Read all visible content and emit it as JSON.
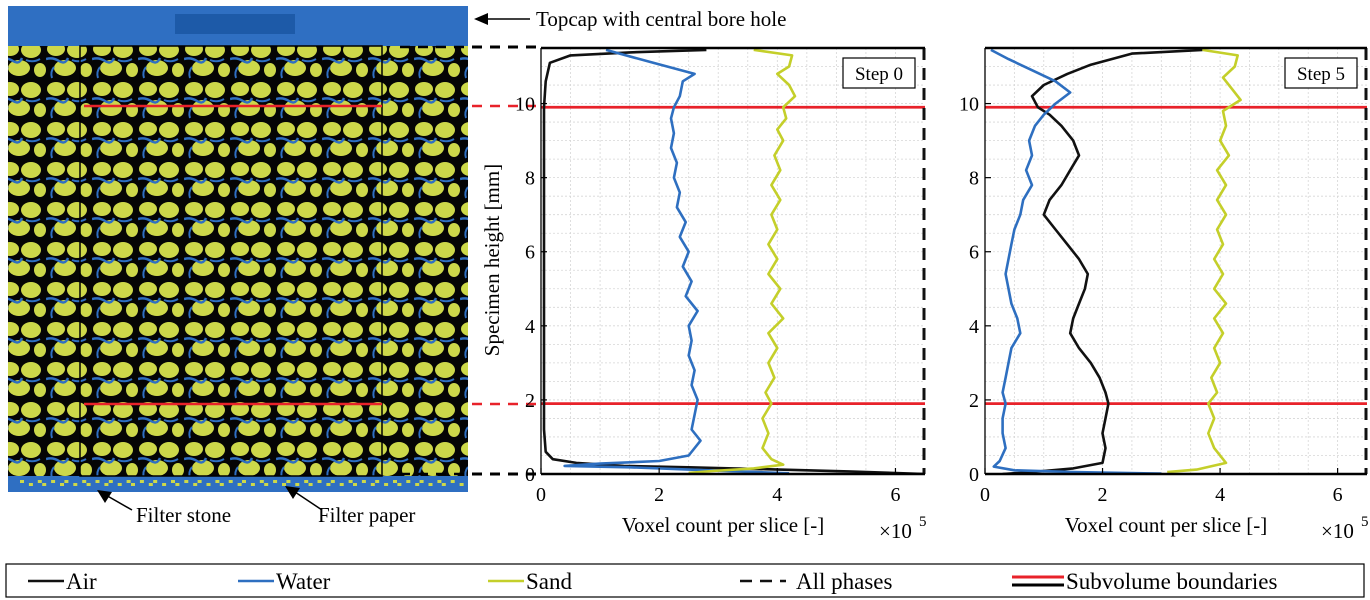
{
  "annotations": {
    "topcap": "Topcap with central bore hole",
    "filter_stone": "Filter stone",
    "filter_paper": "Filter paper"
  },
  "colors": {
    "air": "#111111",
    "water": "#2e6fc0",
    "sand": "#c4cf2a",
    "all_phases": "#111111",
    "subvolume": "#e8222a",
    "pore_black": "#050505",
    "scan_water": "#2f6fc2",
    "scan_sand": "#cdd84a"
  },
  "legend": [
    {
      "label": "Air",
      "style": "air"
    },
    {
      "label": "Water",
      "style": "water"
    },
    {
      "label": "Sand",
      "style": "sand"
    },
    {
      "label": "All phases",
      "style": "dashed"
    },
    {
      "label": "Subvolume boundaries",
      "style": "subvolume"
    }
  ],
  "chart_data": [
    {
      "type": "line",
      "panel": "Step 0",
      "xlabel": "Voxel count per slice [-]",
      "x_multiplier": "×10",
      "x_multiplier_exp": "5",
      "ylabel": "Specimen height [mm]",
      "xlim": [
        0,
        6.5
      ],
      "ylim": [
        0,
        11.5
      ],
      "xticks": [
        "0",
        "2",
        "4",
        "6"
      ],
      "yticks": [
        "0",
        "2",
        "4",
        "6",
        "8",
        "10"
      ],
      "grid": true,
      "subvolume_boundaries": [
        1.9,
        9.9
      ],
      "all_phases_x": 6.5,
      "series": [
        {
          "name": "Air",
          "style": "air",
          "points": [
            [
              2.8,
              11.45
            ],
            [
              1.5,
              11.38
            ],
            [
              0.5,
              11.3
            ],
            [
              0.15,
              11.1
            ],
            [
              0.08,
              10.6
            ],
            [
              0.05,
              9.9
            ],
            [
              0.05,
              9.0
            ],
            [
              0.05,
              8.0
            ],
            [
              0.05,
              7.0
            ],
            [
              0.05,
              6.0
            ],
            [
              0.05,
              5.0
            ],
            [
              0.05,
              4.0
            ],
            [
              0.05,
              3.0
            ],
            [
              0.05,
              2.0
            ],
            [
              0.05,
              1.2
            ],
            [
              0.08,
              0.6
            ],
            [
              0.2,
              0.4
            ],
            [
              0.6,
              0.3
            ],
            [
              1.4,
              0.22
            ],
            [
              2.5,
              0.18
            ],
            [
              3.8,
              0.13
            ],
            [
              5.2,
              0.07
            ],
            [
              6.5,
              0.0
            ]
          ]
        },
        {
          "name": "Water",
          "style": "water",
          "points": [
            [
              1.1,
              11.45
            ],
            [
              1.9,
              11.1
            ],
            [
              2.6,
              10.8
            ],
            [
              2.4,
              10.6
            ],
            [
              2.35,
              10.2
            ],
            [
              2.25,
              9.9
            ],
            [
              2.2,
              9.6
            ],
            [
              2.25,
              9.2
            ],
            [
              2.2,
              8.8
            ],
            [
              2.3,
              8.4
            ],
            [
              2.25,
              8.0
            ],
            [
              2.35,
              7.6
            ],
            [
              2.3,
              7.2
            ],
            [
              2.45,
              6.8
            ],
            [
              2.35,
              6.4
            ],
            [
              2.5,
              6.0
            ],
            [
              2.4,
              5.6
            ],
            [
              2.55,
              5.2
            ],
            [
              2.45,
              4.8
            ],
            [
              2.65,
              4.4
            ],
            [
              2.5,
              4.0
            ],
            [
              2.55,
              3.6
            ],
            [
              2.5,
              3.2
            ],
            [
              2.6,
              2.8
            ],
            [
              2.55,
              2.4
            ],
            [
              2.65,
              2.0
            ],
            [
              2.6,
              1.6
            ],
            [
              2.55,
              1.2
            ],
            [
              2.7,
              0.9
            ],
            [
              2.5,
              0.5
            ],
            [
              2.0,
              0.35
            ],
            [
              1.0,
              0.28
            ],
            [
              0.4,
              0.22
            ],
            [
              1.5,
              0.18
            ],
            [
              2.5,
              0.12
            ],
            [
              3.5,
              0.06
            ],
            [
              4.2,
              0.02
            ]
          ]
        },
        {
          "name": "Sand",
          "style": "sand",
          "points": [
            [
              3.6,
              11.45
            ],
            [
              4.25,
              11.3
            ],
            [
              4.2,
              11.0
            ],
            [
              4.0,
              10.8
            ],
            [
              4.2,
              10.5
            ],
            [
              4.3,
              10.2
            ],
            [
              4.1,
              9.9
            ],
            [
              4.15,
              9.6
            ],
            [
              4.0,
              9.3
            ],
            [
              4.1,
              9.0
            ],
            [
              3.95,
              8.6
            ],
            [
              4.05,
              8.2
            ],
            [
              3.9,
              7.8
            ],
            [
              4.05,
              7.4
            ],
            [
              3.9,
              7.0
            ],
            [
              4.0,
              6.6
            ],
            [
              3.85,
              6.2
            ],
            [
              4.0,
              5.8
            ],
            [
              3.85,
              5.4
            ],
            [
              4.05,
              5.0
            ],
            [
              3.9,
              4.6
            ],
            [
              4.1,
              4.2
            ],
            [
              3.85,
              3.8
            ],
            [
              4.0,
              3.4
            ],
            [
              3.85,
              3.0
            ],
            [
              3.95,
              2.6
            ],
            [
              3.8,
              2.2
            ],
            [
              3.9,
              1.9
            ],
            [
              3.75,
              1.5
            ],
            [
              3.85,
              1.1
            ],
            [
              3.75,
              0.7
            ],
            [
              3.9,
              0.4
            ],
            [
              4.1,
              0.25
            ],
            [
              3.6,
              0.15
            ],
            [
              2.9,
              0.08
            ],
            [
              2.5,
              0.03
            ]
          ]
        }
      ]
    },
    {
      "type": "line",
      "panel": "Step 5",
      "xlabel": "Voxel count per slice [-]",
      "x_multiplier": "×10",
      "x_multiplier_exp": "5",
      "ylabel": "",
      "xlim": [
        0,
        6.5
      ],
      "ylim": [
        0,
        11.5
      ],
      "xticks": [
        "0",
        "2",
        "4",
        "6"
      ],
      "yticks": [
        "0",
        "2",
        "4",
        "6",
        "8",
        "10"
      ],
      "grid": true,
      "subvolume_boundaries": [
        1.9,
        9.9
      ],
      "all_phases_x": 6.5,
      "series": [
        {
          "name": "Air",
          "style": "air",
          "points": [
            [
              3.7,
              11.45
            ],
            [
              2.5,
              11.35
            ],
            [
              1.8,
              11.05
            ],
            [
              1.4,
              10.8
            ],
            [
              1.0,
              10.5
            ],
            [
              0.8,
              10.2
            ],
            [
              0.9,
              9.9
            ],
            [
              1.1,
              9.7
            ],
            [
              1.3,
              9.4
            ],
            [
              1.5,
              9.0
            ],
            [
              1.6,
              8.6
            ],
            [
              1.45,
              8.2
            ],
            [
              1.3,
              7.8
            ],
            [
              1.1,
              7.4
            ],
            [
              1.0,
              7.0
            ],
            [
              1.2,
              6.6
            ],
            [
              1.4,
              6.2
            ],
            [
              1.6,
              5.8
            ],
            [
              1.75,
              5.4
            ],
            [
              1.7,
              5.0
            ],
            [
              1.6,
              4.6
            ],
            [
              1.5,
              4.2
            ],
            [
              1.45,
              3.8
            ],
            [
              1.6,
              3.4
            ],
            [
              1.8,
              3.0
            ],
            [
              1.95,
              2.6
            ],
            [
              2.05,
              2.2
            ],
            [
              2.1,
              1.9
            ],
            [
              2.05,
              1.5
            ],
            [
              2.0,
              1.1
            ],
            [
              2.05,
              0.7
            ],
            [
              2.0,
              0.3
            ],
            [
              1.5,
              0.15
            ],
            [
              0.8,
              0.05
            ],
            [
              0.3,
              0.0
            ]
          ]
        },
        {
          "name": "Water",
          "style": "water",
          "points": [
            [
              0.1,
              11.45
            ],
            [
              0.4,
              11.2
            ],
            [
              0.8,
              10.9
            ],
            [
              1.2,
              10.6
            ],
            [
              1.45,
              10.3
            ],
            [
              1.2,
              10.0
            ],
            [
              1.0,
              9.7
            ],
            [
              0.85,
              9.4
            ],
            [
              0.75,
              9.0
            ],
            [
              0.8,
              8.6
            ],
            [
              0.7,
              8.2
            ],
            [
              0.8,
              7.8
            ],
            [
              0.65,
              7.4
            ],
            [
              0.6,
              7.0
            ],
            [
              0.5,
              6.6
            ],
            [
              0.45,
              6.2
            ],
            [
              0.4,
              5.8
            ],
            [
              0.35,
              5.4
            ],
            [
              0.4,
              5.0
            ],
            [
              0.45,
              4.6
            ],
            [
              0.55,
              4.2
            ],
            [
              0.6,
              3.8
            ],
            [
              0.45,
              3.4
            ],
            [
              0.4,
              3.0
            ],
            [
              0.35,
              2.6
            ],
            [
              0.3,
              2.2
            ],
            [
              0.35,
              1.9
            ],
            [
              0.3,
              1.5
            ],
            [
              0.3,
              1.1
            ],
            [
              0.35,
              0.7
            ],
            [
              0.25,
              0.35
            ],
            [
              0.15,
              0.2
            ],
            [
              0.5,
              0.1
            ],
            [
              1.5,
              0.05
            ],
            [
              3.0,
              0.01
            ]
          ]
        },
        {
          "name": "Sand",
          "style": "sand",
          "points": [
            [
              3.7,
              11.45
            ],
            [
              4.3,
              11.3
            ],
            [
              4.25,
              11.0
            ],
            [
              4.05,
              10.7
            ],
            [
              4.2,
              10.4
            ],
            [
              4.35,
              10.1
            ],
            [
              4.05,
              9.8
            ],
            [
              4.1,
              9.4
            ],
            [
              4.0,
              9.0
            ],
            [
              4.15,
              8.6
            ],
            [
              3.95,
              8.2
            ],
            [
              4.1,
              7.8
            ],
            [
              3.95,
              7.4
            ],
            [
              4.1,
              7.0
            ],
            [
              3.95,
              6.6
            ],
            [
              4.05,
              6.2
            ],
            [
              3.9,
              5.8
            ],
            [
              4.05,
              5.4
            ],
            [
              3.9,
              5.0
            ],
            [
              4.1,
              4.6
            ],
            [
              3.9,
              4.2
            ],
            [
              4.05,
              3.8
            ],
            [
              3.9,
              3.4
            ],
            [
              4.0,
              3.0
            ],
            [
              3.85,
              2.6
            ],
            [
              3.95,
              2.2
            ],
            [
              3.8,
              1.9
            ],
            [
              3.9,
              1.5
            ],
            [
              3.8,
              1.1
            ],
            [
              3.9,
              0.7
            ],
            [
              4.1,
              0.3
            ],
            [
              3.6,
              0.12
            ],
            [
              3.1,
              0.05
            ]
          ]
        }
      ]
    }
  ]
}
